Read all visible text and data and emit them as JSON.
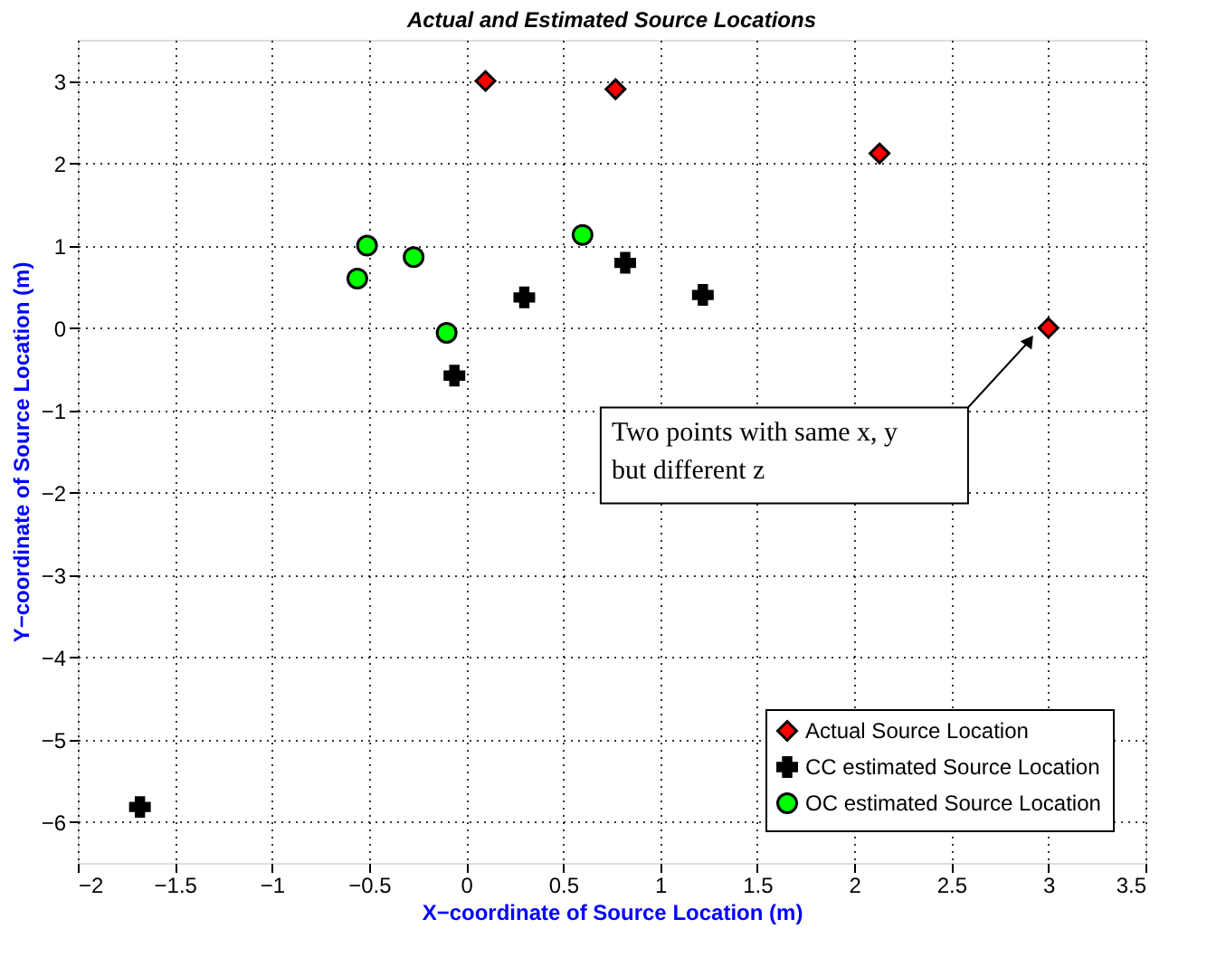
{
  "chart_data": {
    "type": "scatter",
    "title": "Actual and Estimated Source Locations",
    "xlabel": "X−coordinate of Source Location (m)",
    "ylabel": "Y−coordinate of Source Location (m)",
    "xlim": [
      -2,
      3.5
    ],
    "xticks": [
      -2,
      -1.5,
      -1,
      -0.5,
      0,
      0.5,
      1,
      1.5,
      2,
      2.5,
      3,
      3.5
    ],
    "ylim": [
      -6.5,
      3.5
    ],
    "yticks": [
      -6,
      -5,
      -4,
      -3,
      -2,
      -1,
      0,
      1,
      2,
      3
    ],
    "grid": true,
    "legend": "bottom right",
    "series": [
      {
        "name": "Actual Source Location",
        "color": "#ff0000",
        "marker": "diamond",
        "x": [
          0.1,
          0.77,
          2.13,
          3.0
        ],
        "values": [
          3.0,
          2.9,
          2.12,
          0.0
        ]
      },
      {
        "name": "CC estimated Source Location",
        "color": "#000000",
        "marker": "cross",
        "x": [
          0.3,
          0.82,
          1.22,
          -0.06,
          -1.68
        ],
        "values": [
          0.37,
          0.79,
          0.4,
          -0.58,
          -5.82
        ]
      },
      {
        "name": "OC estimated Source Location",
        "color": "#00ff00",
        "marker": "circle",
        "x": [
          -0.51,
          -0.56,
          -0.27,
          -0.1,
          0.6
        ],
        "values": [
          1.0,
          0.6,
          0.86,
          -0.06,
          1.13
        ]
      }
    ],
    "annotations": [
      "Two points with same x, y\nbut different z"
    ]
  }
}
